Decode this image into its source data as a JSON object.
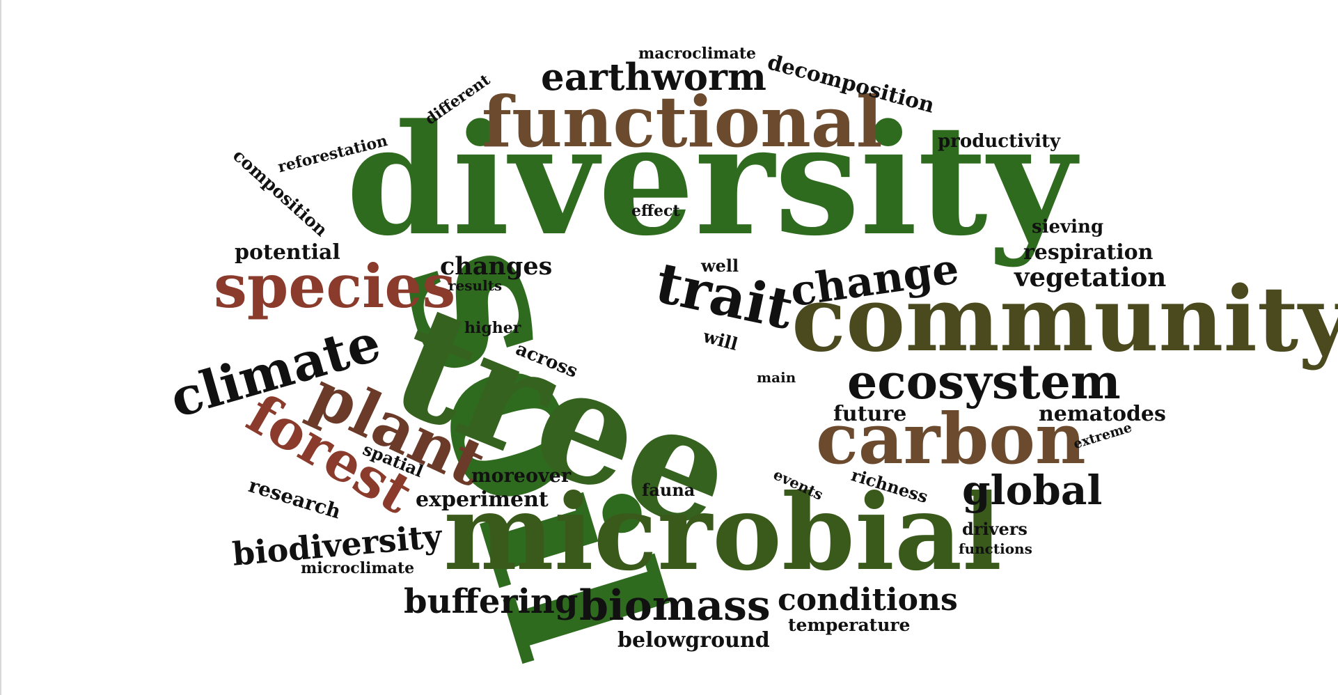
{
  "colors": {
    "green": "#2f6b1f",
    "dark_green": "#3a5a1c",
    "olive": "#4a4a1e",
    "brown": "#6b4a2e",
    "red_brown": "#8a3b2c",
    "maroon": "#7a2a24",
    "black": "#111111"
  },
  "words": [
    {
      "text": "diversity"
    },
    {
      "text": "soil"
    },
    {
      "text": "tree"
    },
    {
      "text": "microbial"
    },
    {
      "text": "community"
    },
    {
      "text": "functional"
    },
    {
      "text": "species"
    },
    {
      "text": "plant"
    },
    {
      "text": "forest"
    },
    {
      "text": "carbon"
    },
    {
      "text": "climate"
    },
    {
      "text": "ecosystem"
    },
    {
      "text": "trait"
    },
    {
      "text": "change"
    },
    {
      "text": "earthworm"
    },
    {
      "text": "biomass"
    },
    {
      "text": "global"
    },
    {
      "text": "biodiversity"
    },
    {
      "text": "buffering"
    },
    {
      "text": "conditions"
    },
    {
      "text": "changes"
    },
    {
      "text": "experiment"
    },
    {
      "text": "potential"
    },
    {
      "text": "respiration"
    },
    {
      "text": "vegetation"
    },
    {
      "text": "nematodes"
    },
    {
      "text": "future"
    },
    {
      "text": "moreover"
    },
    {
      "text": "research"
    },
    {
      "text": "composition"
    },
    {
      "text": "decomposition"
    },
    {
      "text": "productivity"
    },
    {
      "text": "reforestation"
    },
    {
      "text": "macroclimate"
    },
    {
      "text": "different"
    },
    {
      "text": "effect"
    },
    {
      "text": "sieving"
    },
    {
      "text": "well"
    },
    {
      "text": "results"
    },
    {
      "text": "higher"
    },
    {
      "text": "will"
    },
    {
      "text": "across"
    },
    {
      "text": "main"
    },
    {
      "text": "spatial"
    },
    {
      "text": "fauna"
    },
    {
      "text": "events"
    },
    {
      "text": "richness"
    },
    {
      "text": "drivers"
    },
    {
      "text": "functions"
    },
    {
      "text": "extreme"
    },
    {
      "text": "microclimate"
    },
    {
      "text": "belowground"
    },
    {
      "text": "temperature"
    }
  ]
}
